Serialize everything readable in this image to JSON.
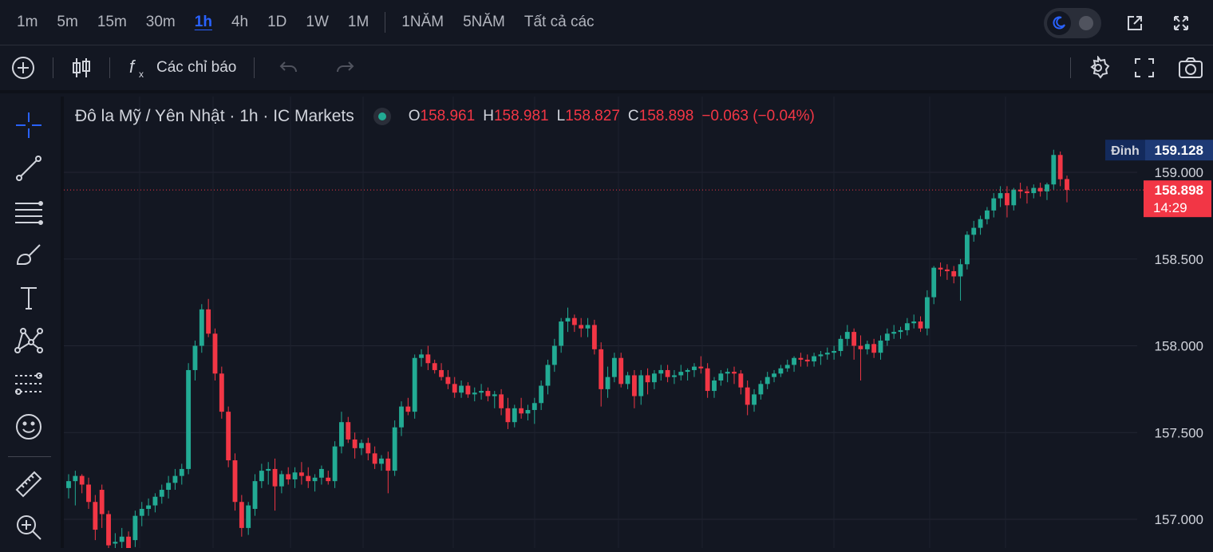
{
  "timeframes": [
    {
      "label": "1m",
      "active": false
    },
    {
      "label": "5m",
      "active": false
    },
    {
      "label": "15m",
      "active": false
    },
    {
      "label": "30m",
      "active": false
    },
    {
      "label": "1h",
      "active": true
    },
    {
      "label": "4h",
      "active": false
    },
    {
      "label": "1D",
      "active": false
    },
    {
      "label": "1W",
      "active": false
    },
    {
      "label": "1M",
      "active": false
    }
  ],
  "ranges": [
    "1NĂM",
    "5NĂM",
    "Tất cả các"
  ],
  "toolbar": {
    "indicators_label": "Các chỉ báo"
  },
  "legend": {
    "symbol_title": "Đô la Mỹ / Yên Nhật · 1h · IC Markets",
    "o_key": "O",
    "o_val": "158.961",
    "h_key": "H",
    "h_val": "158.981",
    "l_key": "L",
    "l_val": "158.827",
    "c_key": "C",
    "c_val": "158.898",
    "change": "−0.063 (−0.04%)"
  },
  "price_axis": {
    "high_label": "Đỉnh",
    "high_value": "159.128",
    "last_value": "158.898",
    "countdown": "14:29"
  },
  "colors": {
    "up": "#22ab94",
    "down": "#f23645",
    "background": "#131722",
    "accent": "#2962ff"
  },
  "icons": {
    "sidebar": [
      "crosshair-icon",
      "trend-line-icon",
      "fib-lines-icon",
      "brush-icon",
      "text-icon",
      "pattern-icon",
      "forecast-icon",
      "emoji-icon",
      "ruler-icon",
      "zoom-in-icon"
    ],
    "top_right": [
      "theme-toggle-icon",
      "popout-icon",
      "fullscreen-icon"
    ],
    "toolbar_right": [
      "settings-icon",
      "fullscreen-icon",
      "camera-icon"
    ]
  },
  "chart_data": {
    "type": "candlestick",
    "y_ticks": [
      159.0,
      158.5,
      158.0,
      157.5,
      157.0
    ],
    "y_tick_labels": [
      "159.000",
      "158.500",
      "158.000",
      "157.500",
      "157.000"
    ],
    "ylim": [
      156.85,
      159.33
    ],
    "high": 159.128,
    "last": 158.898,
    "grid": true,
    "candles": [
      [
        157.18,
        157.26,
        157.12,
        157.22
      ],
      [
        157.22,
        157.28,
        157.08,
        157.25
      ],
      [
        157.25,
        157.26,
        157.15,
        157.2
      ],
      [
        157.2,
        157.24,
        157.06,
        157.1
      ],
      [
        157.1,
        157.14,
        156.88,
        156.94
      ],
      [
        157.17,
        157.2,
        156.95,
        157.03
      ],
      [
        157.03,
        157.05,
        156.8,
        156.85
      ],
      [
        156.86,
        156.92,
        156.78,
        156.87
      ],
      [
        156.87,
        156.95,
        156.81,
        156.9
      ],
      [
        156.9,
        156.93,
        156.8,
        156.83
      ],
      [
        156.88,
        157.05,
        156.84,
        157.02
      ],
      [
        157.02,
        157.1,
        156.96,
        157.06
      ],
      [
        157.06,
        157.12,
        157.02,
        157.08
      ],
      [
        157.08,
        157.15,
        157.04,
        157.13
      ],
      [
        157.13,
        157.2,
        157.09,
        157.17
      ],
      [
        157.17,
        157.25,
        157.12,
        157.21
      ],
      [
        157.21,
        157.29,
        157.17,
        157.25
      ],
      [
        157.25,
        157.32,
        157.2,
        157.29
      ],
      [
        157.29,
        157.9,
        157.26,
        157.86
      ],
      [
        157.86,
        158.03,
        157.8,
        158.0
      ],
      [
        158.0,
        158.24,
        157.96,
        158.21
      ],
      [
        158.21,
        158.27,
        158.05,
        158.07
      ],
      [
        158.07,
        158.1,
        157.8,
        157.84
      ],
      [
        157.84,
        157.88,
        157.58,
        157.62
      ],
      [
        157.62,
        157.65,
        157.3,
        157.34
      ],
      [
        157.34,
        157.38,
        157.05,
        157.1
      ],
      [
        157.1,
        157.14,
        156.9,
        156.95
      ],
      [
        156.95,
        157.1,
        156.91,
        157.08
      ],
      [
        157.06,
        157.26,
        157.02,
        157.22
      ],
      [
        157.22,
        157.32,
        157.18,
        157.28
      ],
      [
        157.28,
        157.33,
        157.2,
        157.29
      ],
      [
        157.29,
        157.35,
        157.05,
        157.19
      ],
      [
        157.19,
        157.28,
        157.15,
        157.26
      ],
      [
        157.26,
        157.3,
        157.2,
        157.23
      ],
      [
        157.23,
        157.3,
        157.18,
        157.27
      ],
      [
        157.27,
        157.33,
        157.2,
        157.25
      ],
      [
        157.25,
        157.3,
        157.18,
        157.22
      ],
      [
        157.22,
        157.26,
        157.16,
        157.24
      ],
      [
        157.24,
        157.31,
        157.2,
        157.29
      ],
      [
        157.24,
        157.28,
        157.2,
        157.22
      ],
      [
        157.22,
        157.45,
        157.18,
        157.42
      ],
      [
        157.42,
        157.62,
        157.38,
        157.56
      ],
      [
        157.56,
        157.59,
        157.44,
        157.46
      ],
      [
        157.46,
        157.5,
        157.35,
        157.41
      ],
      [
        157.41,
        157.46,
        157.37,
        157.44
      ],
      [
        157.44,
        157.47,
        157.34,
        157.38
      ],
      [
        157.38,
        157.42,
        157.29,
        157.32
      ],
      [
        157.32,
        157.37,
        157.28,
        157.35
      ],
      [
        157.35,
        157.39,
        157.15,
        157.28
      ],
      [
        157.28,
        157.57,
        157.25,
        157.53
      ],
      [
        157.53,
        157.68,
        157.48,
        157.65
      ],
      [
        157.65,
        157.7,
        157.6,
        157.62
      ],
      [
        157.62,
        157.95,
        157.58,
        157.93
      ],
      [
        157.93,
        157.98,
        157.88,
        157.95
      ],
      [
        157.95,
        158.0,
        157.86,
        157.9
      ],
      [
        157.9,
        157.92,
        157.84,
        157.86
      ],
      [
        157.86,
        157.9,
        157.8,
        157.82
      ],
      [
        157.82,
        157.86,
        157.75,
        157.78
      ],
      [
        157.78,
        157.82,
        157.7,
        157.73
      ],
      [
        157.73,
        157.8,
        157.7,
        157.77
      ],
      [
        157.77,
        157.79,
        157.7,
        157.72
      ],
      [
        157.72,
        157.76,
        157.68,
        157.73
      ],
      [
        157.73,
        157.78,
        157.69,
        157.74
      ],
      [
        157.74,
        157.76,
        157.68,
        157.71
      ],
      [
        157.71,
        157.74,
        157.64,
        157.72
      ],
      [
        157.72,
        157.75,
        157.6,
        157.64
      ],
      [
        157.64,
        157.7,
        157.52,
        157.56
      ],
      [
        157.56,
        157.66,
        157.53,
        157.64
      ],
      [
        157.64,
        157.7,
        157.58,
        157.61
      ],
      [
        157.61,
        157.66,
        157.57,
        157.63
      ],
      [
        157.63,
        157.7,
        157.55,
        157.67
      ],
      [
        157.67,
        157.8,
        157.63,
        157.77
      ],
      [
        157.77,
        157.92,
        157.72,
        157.89
      ],
      [
        157.89,
        158.04,
        157.85,
        158.0
      ],
      [
        158.0,
        158.16,
        157.96,
        158.14
      ],
      [
        158.14,
        158.22,
        158.08,
        158.16
      ],
      [
        158.16,
        158.18,
        158.08,
        158.12
      ],
      [
        158.12,
        158.16,
        158.05,
        158.1
      ],
      [
        158.1,
        158.16,
        158.05,
        158.12
      ],
      [
        158.12,
        158.15,
        157.95,
        157.98
      ],
      [
        157.98,
        158.02,
        157.65,
        157.75
      ],
      [
        157.75,
        157.88,
        157.7,
        157.82
      ],
      [
        157.82,
        157.96,
        157.79,
        157.93
      ],
      [
        157.93,
        157.96,
        157.76,
        157.78
      ],
      [
        157.78,
        157.85,
        157.75,
        157.83
      ],
      [
        157.83,
        157.86,
        157.64,
        157.71
      ],
      [
        157.71,
        157.86,
        157.66,
        157.83
      ],
      [
        157.83,
        157.87,
        157.72,
        157.79
      ],
      [
        157.79,
        157.86,
        157.75,
        157.84
      ],
      [
        157.84,
        157.89,
        157.8,
        157.86
      ],
      [
        157.86,
        157.89,
        157.79,
        157.82
      ],
      [
        157.82,
        157.86,
        157.78,
        157.83
      ],
      [
        157.83,
        157.89,
        157.8,
        157.85
      ],
      [
        157.85,
        157.87,
        157.8,
        157.86
      ],
      [
        157.86,
        157.9,
        157.82,
        157.88
      ],
      [
        157.88,
        157.94,
        157.84,
        157.87
      ],
      [
        157.87,
        157.9,
        157.7,
        157.74
      ],
      [
        157.74,
        157.82,
        157.7,
        157.8
      ],
      [
        157.8,
        157.86,
        157.77,
        157.84
      ],
      [
        157.84,
        157.87,
        157.79,
        157.85
      ],
      [
        157.85,
        157.88,
        157.78,
        157.84
      ],
      [
        157.84,
        157.86,
        157.72,
        157.76
      ],
      [
        157.76,
        157.8,
        157.6,
        157.66
      ],
      [
        157.66,
        157.75,
        157.62,
        157.72
      ],
      [
        157.72,
        157.8,
        157.69,
        157.78
      ],
      [
        157.78,
        157.85,
        157.75,
        157.82
      ],
      [
        157.82,
        157.86,
        157.79,
        157.84
      ],
      [
        157.84,
        157.89,
        157.82,
        157.87
      ],
      [
        157.87,
        157.92,
        157.85,
        157.89
      ],
      [
        157.89,
        157.94,
        157.85,
        157.93
      ],
      [
        157.93,
        157.96,
        157.88,
        157.92
      ],
      [
        157.92,
        157.95,
        157.88,
        157.91
      ],
      [
        157.91,
        157.96,
        157.88,
        157.94
      ],
      [
        157.94,
        157.97,
        157.89,
        157.95
      ],
      [
        157.95,
        157.99,
        157.92,
        157.96
      ],
      [
        157.96,
        158.0,
        157.92,
        157.97
      ],
      [
        157.97,
        158.06,
        157.94,
        158.04
      ],
      [
        158.04,
        158.12,
        158.0,
        158.08
      ],
      [
        158.08,
        158.1,
        157.92,
        158.0
      ],
      [
        158.0,
        158.06,
        157.8,
        157.98
      ],
      [
        157.98,
        158.03,
        157.95,
        158.01
      ],
      [
        158.01,
        158.04,
        157.93,
        157.96
      ],
      [
        157.96,
        158.06,
        157.92,
        158.03
      ],
      [
        158.03,
        158.1,
        158.0,
        158.07
      ],
      [
        158.07,
        158.12,
        158.04,
        158.08
      ],
      [
        158.08,
        158.11,
        158.04,
        158.09
      ],
      [
        158.09,
        158.16,
        158.06,
        158.13
      ],
      [
        158.13,
        158.18,
        158.1,
        158.14
      ],
      [
        158.14,
        158.17,
        158.08,
        158.1
      ],
      [
        158.1,
        158.32,
        158.06,
        158.28
      ],
      [
        158.28,
        158.46,
        158.24,
        158.45
      ],
      [
        158.45,
        158.48,
        158.4,
        158.44
      ],
      [
        158.44,
        158.47,
        158.38,
        158.43
      ],
      [
        158.43,
        158.46,
        158.36,
        158.4
      ],
      [
        158.4,
        158.5,
        158.26,
        158.47
      ],
      [
        158.47,
        158.66,
        158.44,
        158.64
      ],
      [
        158.64,
        158.72,
        158.6,
        158.68
      ],
      [
        158.68,
        158.75,
        158.64,
        158.73
      ],
      [
        158.73,
        158.8,
        158.7,
        158.78
      ],
      [
        158.78,
        158.88,
        158.74,
        158.85
      ],
      [
        158.85,
        158.92,
        158.8,
        158.88
      ],
      [
        158.88,
        158.92,
        158.74,
        158.81
      ],
      [
        158.81,
        158.91,
        158.78,
        158.9
      ],
      [
        158.9,
        158.94,
        158.85,
        158.89
      ],
      [
        158.89,
        158.92,
        158.82,
        158.88
      ],
      [
        158.88,
        158.93,
        158.85,
        158.91
      ],
      [
        158.91,
        158.94,
        158.86,
        158.89
      ],
      [
        158.89,
        158.94,
        158.84,
        158.93
      ],
      [
        158.93,
        159.13,
        158.9,
        159.1
      ],
      [
        159.1,
        159.12,
        158.92,
        158.96
      ],
      [
        158.961,
        158.981,
        158.827,
        158.898
      ]
    ]
  }
}
